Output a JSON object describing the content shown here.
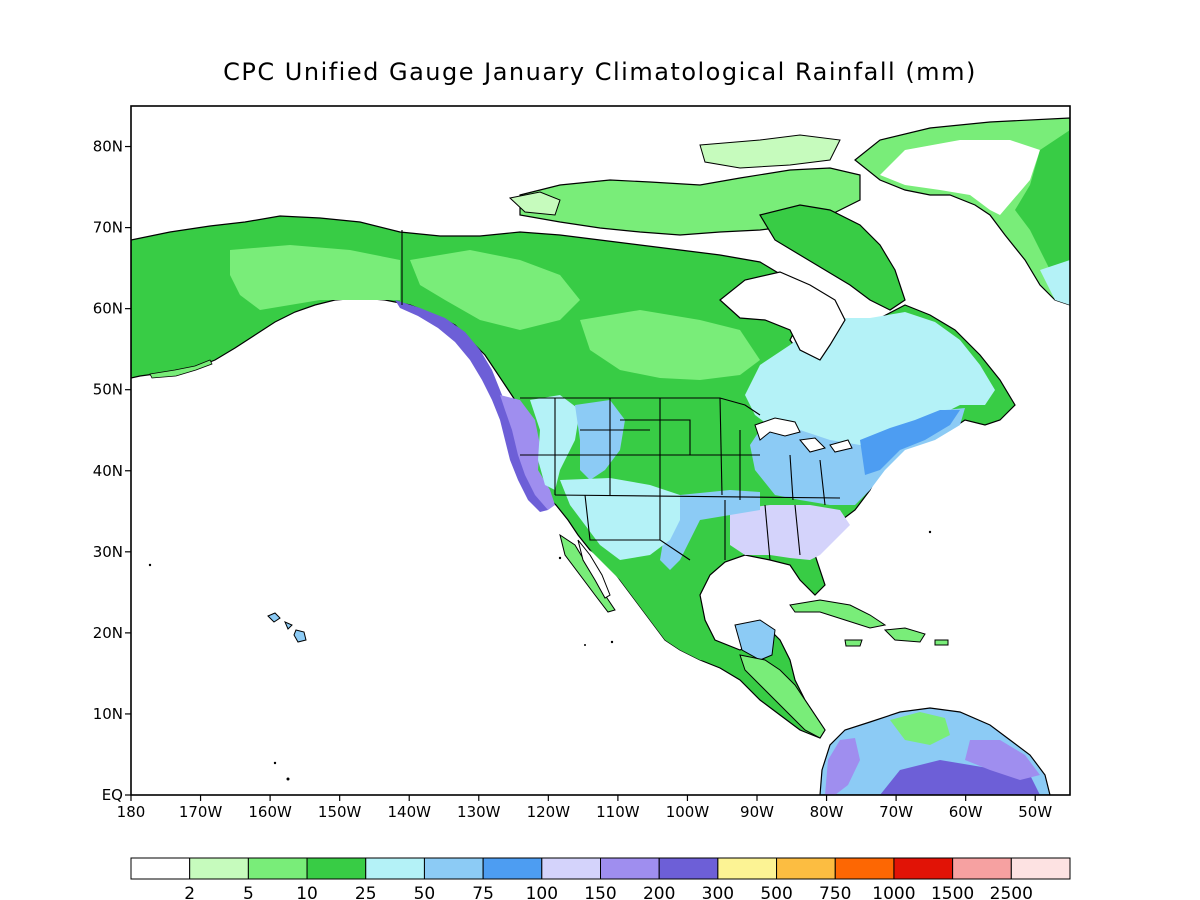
{
  "title": "CPC Unified Gauge January Climatological Rainfall (mm)",
  "map": {
    "lon_range": [
      -180,
      -45
    ],
    "lat_range": [
      0,
      85
    ],
    "lat_ticks": [
      {
        "value": 80,
        "label": "80N"
      },
      {
        "value": 70,
        "label": "70N"
      },
      {
        "value": 60,
        "label": "60N"
      },
      {
        "value": 50,
        "label": "50N"
      },
      {
        "value": 40,
        "label": "40N"
      },
      {
        "value": 30,
        "label": "30N"
      },
      {
        "value": 20,
        "label": "20N"
      },
      {
        "value": 10,
        "label": "10N"
      },
      {
        "value": 0,
        "label": "EQ"
      }
    ],
    "lon_ticks": [
      {
        "value": -180,
        "label": "180"
      },
      {
        "value": -170,
        "label": "170W"
      },
      {
        "value": -160,
        "label": "160W"
      },
      {
        "value": -150,
        "label": "150W"
      },
      {
        "value": -140,
        "label": "140W"
      },
      {
        "value": -130,
        "label": "130W"
      },
      {
        "value": -120,
        "label": "120W"
      },
      {
        "value": -110,
        "label": "110W"
      },
      {
        "value": -100,
        "label": "100W"
      },
      {
        "value": -90,
        "label": "90W"
      },
      {
        "value": -80,
        "label": "80W"
      },
      {
        "value": -70,
        "label": "70W"
      },
      {
        "value": -60,
        "label": "60W"
      },
      {
        "value": -50,
        "label": "50W"
      }
    ]
  },
  "colorbar": {
    "colors": [
      "#ffffff",
      "#c6fbbd",
      "#79ed79",
      "#38cc45",
      "#b4f2f7",
      "#8ccbf5",
      "#4d9df2",
      "#d4d3fb",
      "#9f8eef",
      "#6d5fd7",
      "#fcf394",
      "#fcbd41",
      "#fd6703",
      "#e11306",
      "#f6a1a1",
      "#fde2e2"
    ],
    "labels": [
      "2",
      "5",
      "10",
      "25",
      "50",
      "75",
      "100",
      "150",
      "200",
      "300",
      "500",
      "750",
      "1000",
      "1500",
      "2500"
    ]
  }
}
